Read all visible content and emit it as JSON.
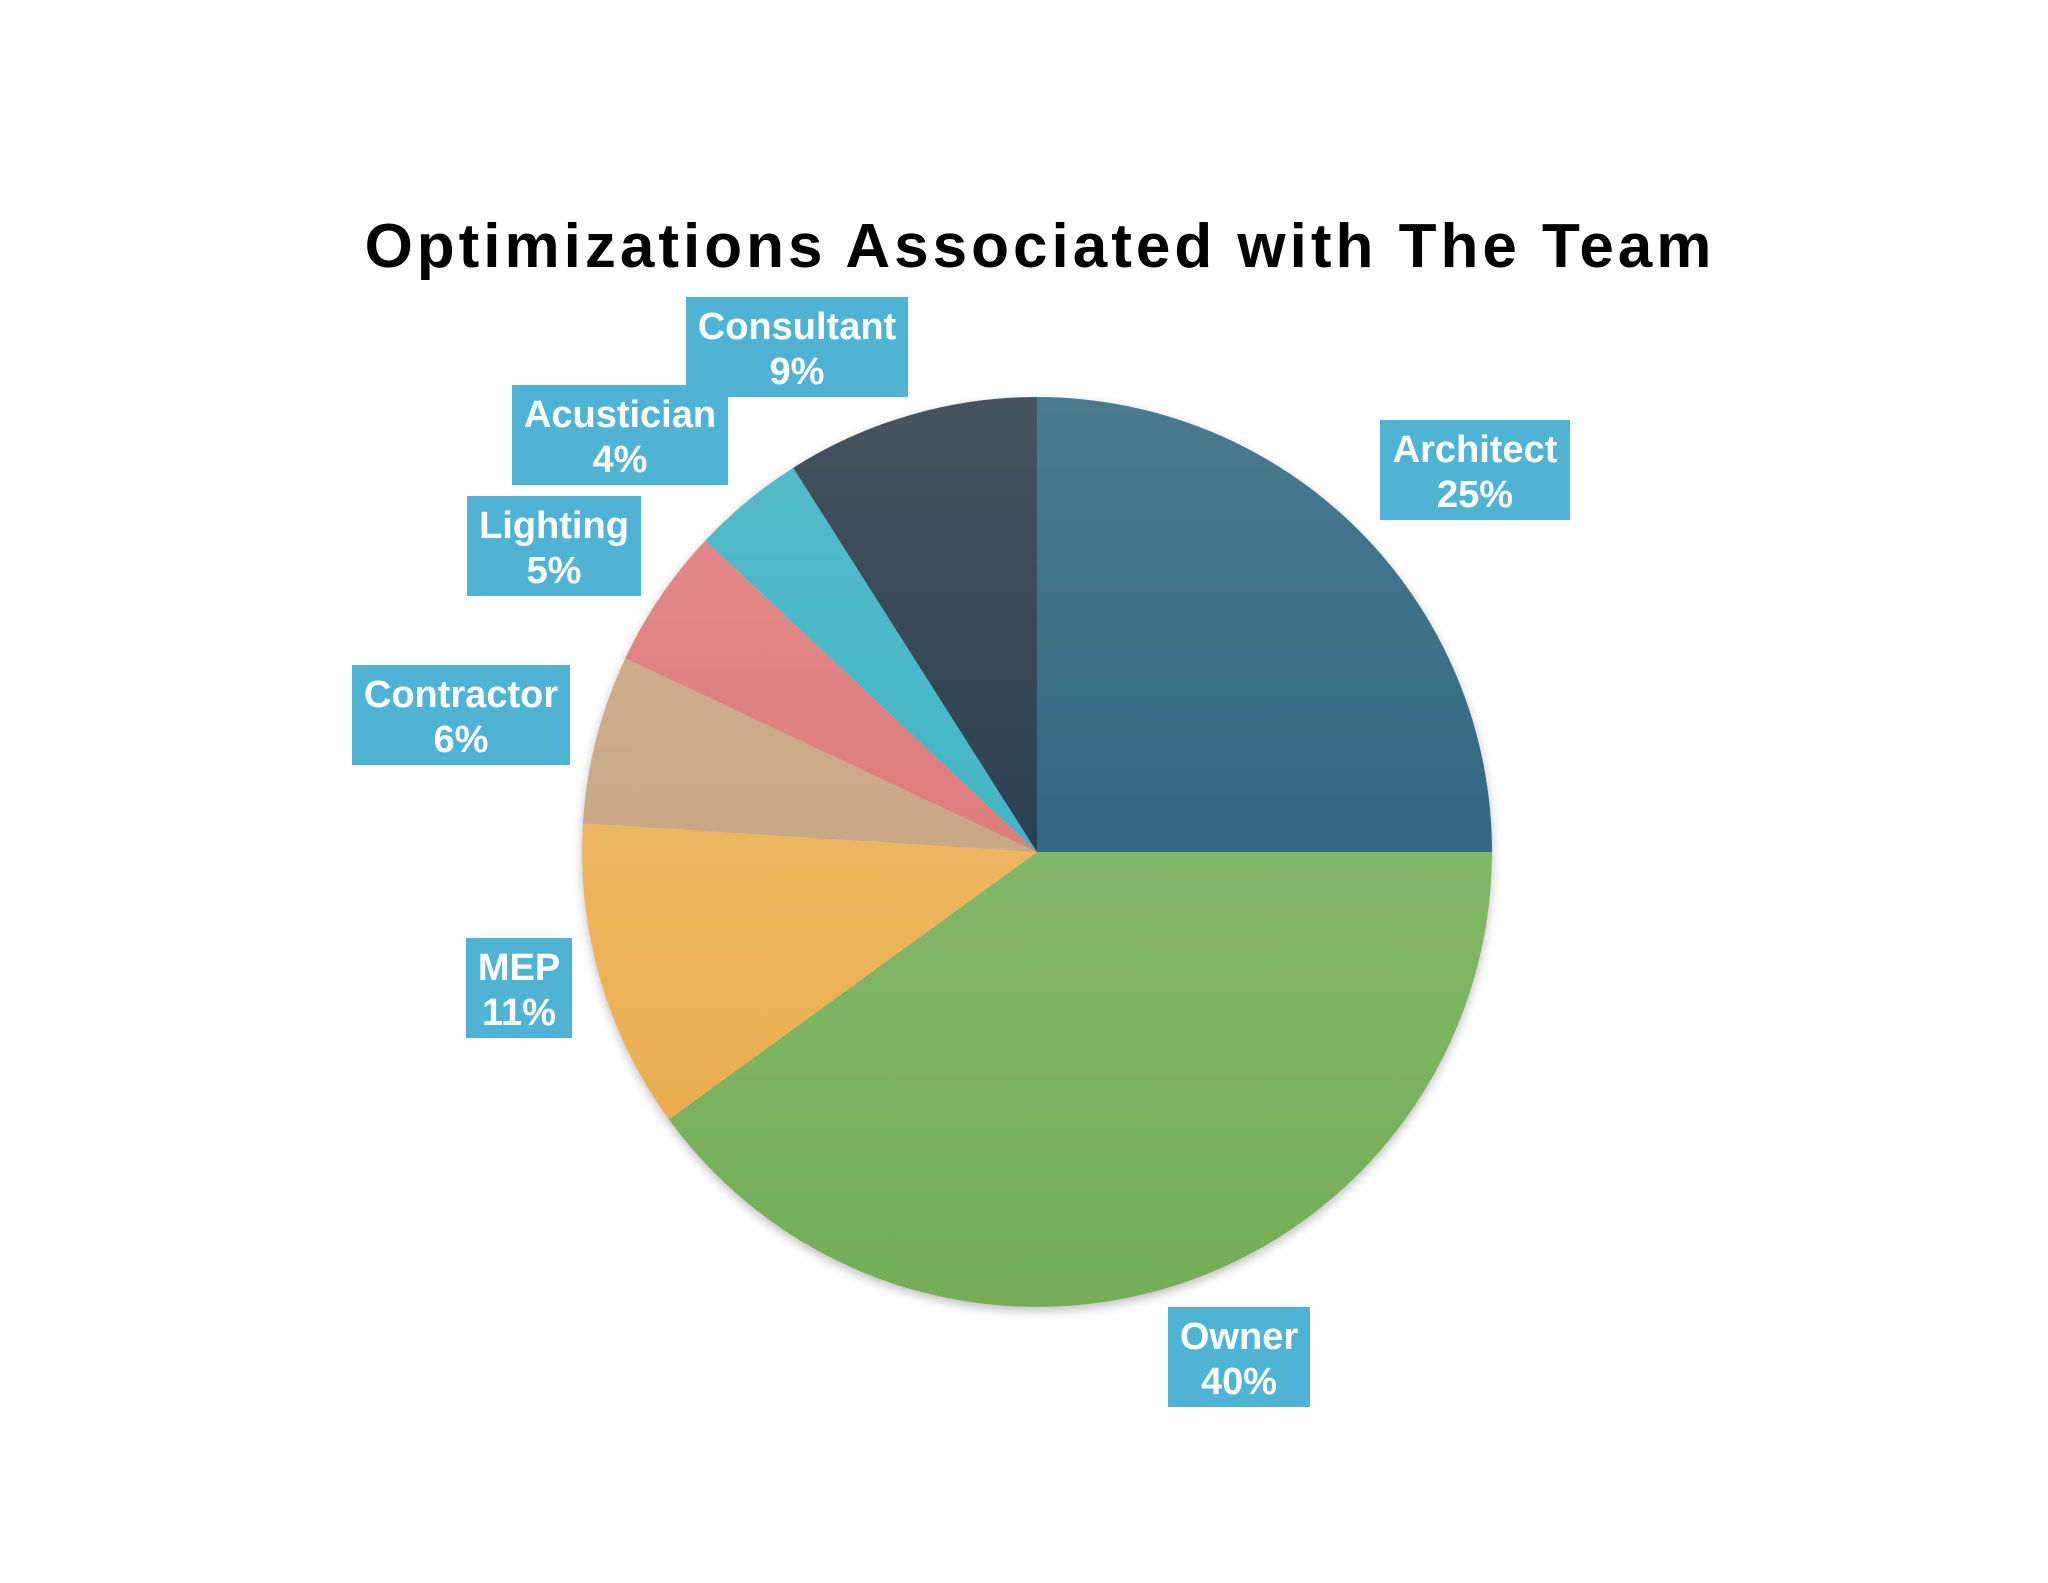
{
  "chart_data": {
    "type": "pie",
    "title": "Optimizations Associated with The Team",
    "start_angle_deg": 0,
    "direction": "clockwise",
    "label_box_color": "#4FB3D5",
    "label_text_color": "#FFFFFF",
    "title_color": "#000000",
    "slices": [
      {
        "name": "Architect",
        "value": 25,
        "label": "25%",
        "color_top": "#4A7A8E",
        "color_bottom": "#165879"
      },
      {
        "name": "Owner",
        "value": 40,
        "label": "40%",
        "color_top": "#8FC07B",
        "color_bottom": "#74AE56"
      },
      {
        "name": "MEP",
        "value": 11,
        "label": "11%",
        "color_top": "#F2C578",
        "color_bottom": "#E8A845"
      },
      {
        "name": "Contractor",
        "value": 6,
        "label": "6%",
        "color_top": "#D5B595",
        "color_bottom": "#BC9A77"
      },
      {
        "name": "Lighting",
        "value": 5,
        "label": "5%",
        "color_top": "#E38E8E",
        "color_bottom": "#DB6868"
      },
      {
        "name": "Acustician",
        "value": 4,
        "label": "4%",
        "color_top": "#56BBCA",
        "color_bottom": "#2DB2C3"
      },
      {
        "name": "Consultant",
        "value": 9,
        "label": "9%",
        "color_top": "#46535F",
        "color_bottom": "#0F2D44"
      }
    ]
  }
}
